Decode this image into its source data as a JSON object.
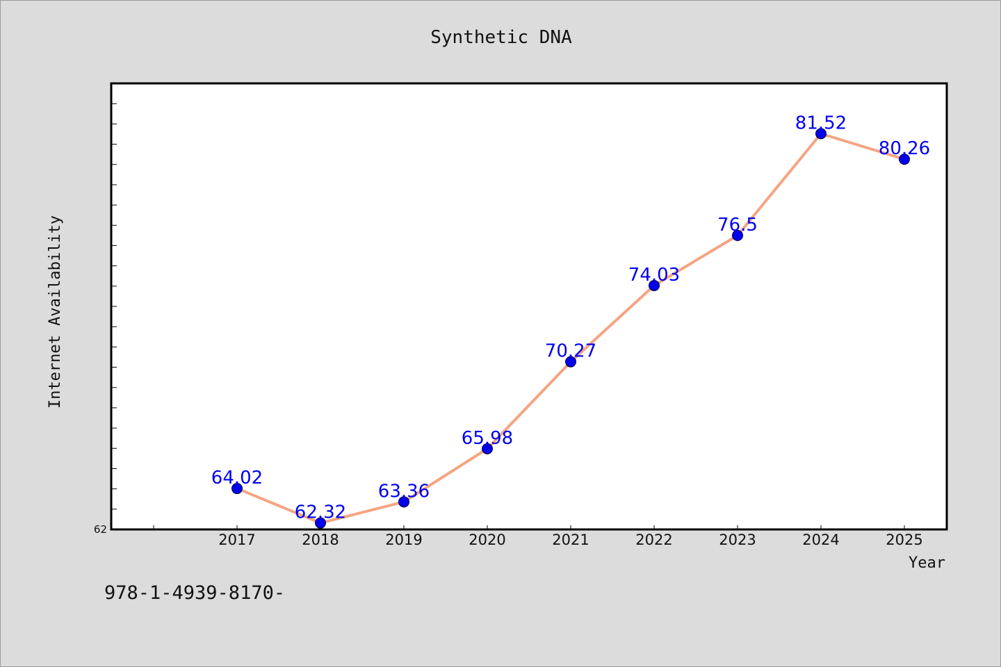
{
  "colors": {
    "line": "#f4a582",
    "marker": "#0000ee",
    "label": "#0000ee",
    "plot_bg": "#ffffff",
    "frame": "#000000"
  },
  "footer": {
    "code": "978-1-4939-8170-"
  },
  "chart_data": {
    "type": "line",
    "title": "Synthetic DNA",
    "xlabel": "Year",
    "ylabel": "Internet Availability",
    "categories": [
      "2017",
      "2018",
      "2019",
      "2020",
      "2021",
      "2022",
      "2023",
      "2024",
      "2025"
    ],
    "series": [
      {
        "values": [
          64.02,
          62.32,
          63.36,
          65.98,
          70.27,
          74.03,
          76.5,
          81.52,
          80.26
        ],
        "labels": [
          "64.02",
          "62.32",
          "63.36",
          "65.98",
          "70.27",
          "74.03",
          "76.5",
          "81.52",
          "80.26"
        ]
      }
    ],
    "ylim": [
      62,
      84
    ],
    "y_min_label": "62",
    "grid": false,
    "legend": "none"
  }
}
